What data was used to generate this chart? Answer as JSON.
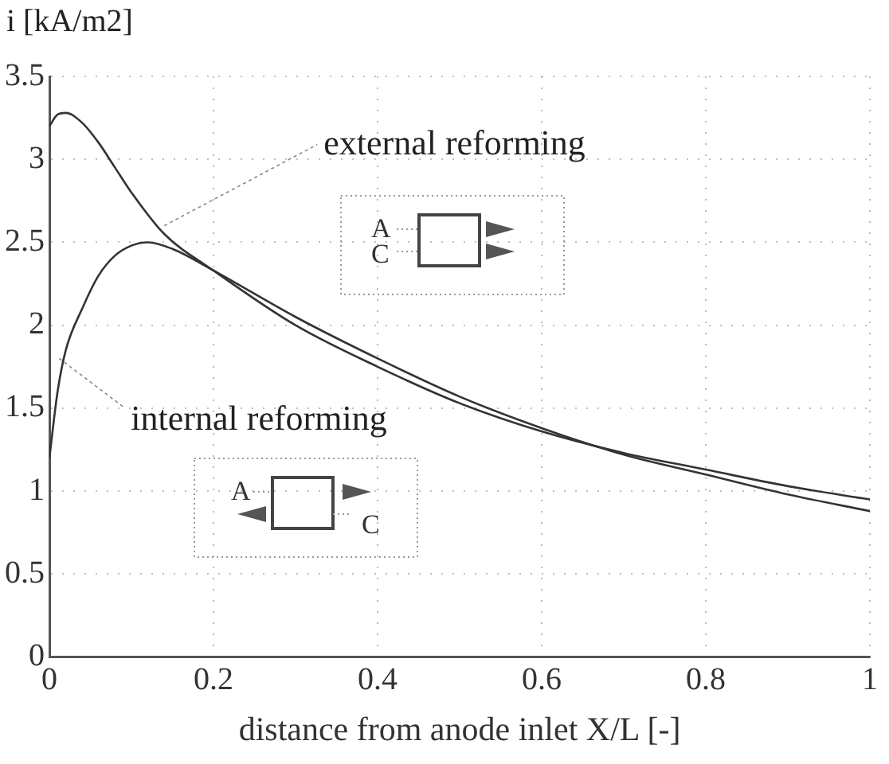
{
  "chart_data": {
    "type": "line",
    "xlabel": "distance from anode inlet X/L [-]",
    "ylabel": "i [kA/m2]",
    "xlim": [
      0,
      1
    ],
    "xticks": [
      0,
      0.2,
      0.4,
      0.6,
      0.8,
      1
    ],
    "ylim": [
      0,
      3.5
    ],
    "yticks": [
      0,
      0.5,
      1,
      1.5,
      2,
      2.5,
      3,
      3.5
    ],
    "grid": true,
    "legend": false,
    "marker": "none",
    "line_style": "solid",
    "series": [
      {
        "color": "#333333",
        "x": [
          0,
          0.01,
          0.02,
          0.04,
          0.06,
          0.08,
          0.1,
          0.14,
          0.2,
          0.3,
          0.4,
          0.5,
          0.6,
          0.7,
          0.8,
          0.9,
          1
        ],
        "values": [
          3.2,
          3.27,
          3.28,
          3.22,
          3.1,
          2.95,
          2.8,
          2.55,
          2.33,
          2.0,
          1.75,
          1.53,
          1.36,
          1.23,
          1.13,
          1.03,
          0.95
        ]
      },
      {
        "color": "#333333",
        "x": [
          0,
          0.01,
          0.02,
          0.04,
          0.06,
          0.08,
          0.1,
          0.12,
          0.15,
          0.2,
          0.3,
          0.4,
          0.5,
          0.6,
          0.7,
          0.8,
          0.9,
          1
        ],
        "values": [
          1.2,
          1.6,
          1.85,
          2.1,
          2.3,
          2.42,
          2.48,
          2.5,
          2.46,
          2.33,
          2.05,
          1.8,
          1.57,
          1.38,
          1.22,
          1.1,
          0.98,
          0.88
        ]
      }
    ],
    "annotations": [
      {
        "text": "external reforming",
        "x": 0.14,
        "y": 2.6
      },
      {
        "text": "internal reforming",
        "x": 0.012,
        "y": 1.8
      },
      "A",
      "C",
      "A",
      "C"
    ]
  }
}
